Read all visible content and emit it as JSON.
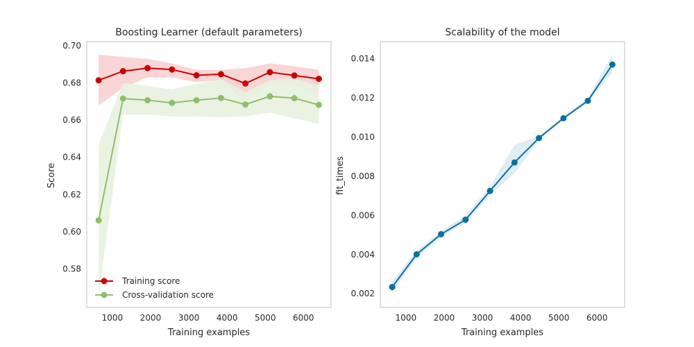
{
  "chart_data": [
    {
      "type": "line",
      "title": "Boosting Learner (default parameters)",
      "xlabel": "Training examples",
      "ylabel": "Score",
      "xlim": [
        330,
        6720
      ],
      "ylim": [
        0.5593,
        0.7022
      ],
      "xticks": [
        1000,
        2000,
        3000,
        4000,
        5000,
        6000
      ],
      "yticks": [
        0.58,
        0.6,
        0.62,
        0.64,
        0.66,
        0.68,
        0.7
      ],
      "grid": false,
      "legend_position": "lower-left",
      "x": [
        640,
        1280,
        1920,
        2560,
        3200,
        3840,
        4480,
        5120,
        5760,
        6400
      ],
      "series": [
        {
          "name": "Training score",
          "color": "#cc0000",
          "band_color": "#f8d0d0",
          "values": [
            0.6814,
            0.6863,
            0.688,
            0.6872,
            0.6841,
            0.6847,
            0.6797,
            0.6858,
            0.684,
            0.6822
          ],
          "band_low": [
            0.668,
            0.6773,
            0.683,
            0.683,
            0.6805,
            0.6815,
            0.67,
            0.681,
            0.679,
            0.674
          ],
          "band_high": [
            0.6951,
            0.694,
            0.693,
            0.6905,
            0.687,
            0.687,
            0.688,
            0.6905,
            0.689,
            0.687
          ]
        },
        {
          "name": "Cross-validation score",
          "color": "#8fbe6a",
          "band_color": "#e8f2df",
          "values": [
            0.6061,
            0.6716,
            0.6707,
            0.6693,
            0.6707,
            0.6719,
            0.6684,
            0.6728,
            0.6718,
            0.6682
          ],
          "band_low": [
            0.565,
            0.663,
            0.663,
            0.662,
            0.662,
            0.6615,
            0.662,
            0.664,
            0.661,
            0.658
          ],
          "band_high": [
            0.647,
            0.68,
            0.6785,
            0.6765,
            0.6795,
            0.682,
            0.675,
            0.6815,
            0.6825,
            0.6785
          ]
        }
      ]
    },
    {
      "type": "line",
      "title": "Scalability of the model",
      "xlabel": "Training examples",
      "ylabel": "fit_times",
      "xlim": [
        330,
        6720
      ],
      "ylim": [
        0.0013,
        0.01487
      ],
      "xticks": [
        1000,
        2000,
        3000,
        4000,
        5000,
        6000
      ],
      "yticks": [
        0.002,
        0.004,
        0.006,
        0.008,
        0.01,
        0.012,
        0.014
      ],
      "grid": false,
      "x": [
        640,
        1280,
        1920,
        2560,
        3200,
        3840,
        4480,
        5120,
        5760,
        6400
      ],
      "series": [
        {
          "name": "",
          "color": "#0a6fa0",
          "band_color": "#dbeaf1",
          "values": [
            0.00234,
            0.00401,
            0.00504,
            0.00578,
            0.00725,
            0.0087,
            0.00995,
            0.01096,
            0.01185,
            0.0137
          ],
          "band_low": [
            0.00205,
            0.00385,
            0.0049,
            0.0056,
            0.00705,
            0.00815,
            0.00985,
            0.0109,
            0.01175,
            0.0133
          ],
          "band_high": [
            0.00265,
            0.0042,
            0.0052,
            0.006,
            0.00745,
            0.0096,
            0.01005,
            0.01105,
            0.012,
            0.0142
          ]
        }
      ]
    }
  ]
}
